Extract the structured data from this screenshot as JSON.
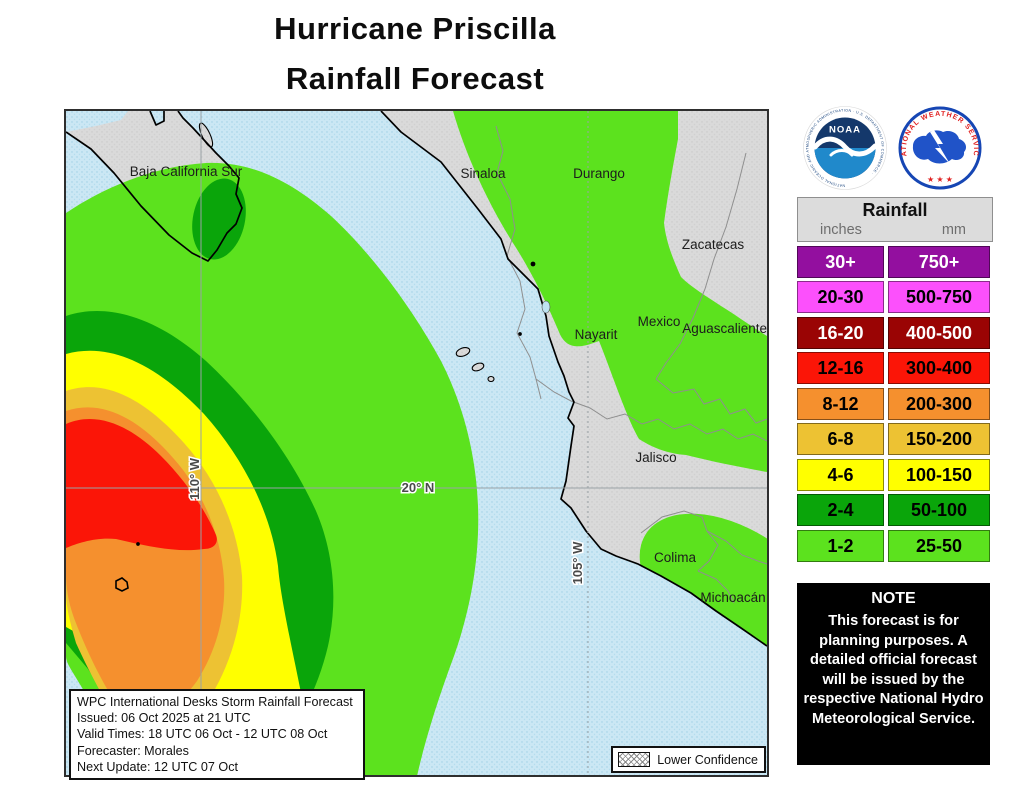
{
  "title": {
    "line1": "Hurricane Priscilla",
    "line2": "Rainfall Forecast"
  },
  "legend": {
    "header": "Rainfall",
    "unit_left": "inches",
    "unit_right": "mm",
    "rows": [
      {
        "inches": "30+",
        "mm": "750+",
        "color": "#930f9f",
        "text_color": "#ffffff"
      },
      {
        "inches": "20-30",
        "mm": "500-750",
        "color": "#fc50fc",
        "text_color": "#000000"
      },
      {
        "inches": "16-20",
        "mm": "400-500",
        "color": "#9a0404",
        "text_color": "#ffffff"
      },
      {
        "inches": "12-16",
        "mm": "300-400",
        "color": "#fb1507",
        "text_color": "#000000"
      },
      {
        "inches": "8-12",
        "mm": "200-300",
        "color": "#f5902e",
        "text_color": "#000000"
      },
      {
        "inches": "6-8",
        "mm": "150-200",
        "color": "#edc233",
        "text_color": "#000000"
      },
      {
        "inches": "4-6",
        "mm": "100-150",
        "color": "#ffff00",
        "text_color": "#000000"
      },
      {
        "inches": "2-4",
        "mm": "50-100",
        "color": "#0aa50a",
        "text_color": "#000000"
      },
      {
        "inches": "1-2",
        "mm": "25-50",
        "color": "#5ce21e",
        "text_color": "#000000"
      }
    ]
  },
  "note": {
    "title": "NOTE",
    "body": "This forecast is for planning purposes. A detailed official forecast will be issued by the respective National Hydro Meteorological Service."
  },
  "info_box": {
    "lines": [
      "WPC International Desks Storm Rainfall Forecast",
      "Issued: 06 Oct 2025 at 21 UTC",
      "Valid Times: 18 UTC 06 Oct - 12 UTC 08 Oct",
      "Forecaster: Morales",
      "Next Update: 12 UTC 07 Oct"
    ]
  },
  "map": {
    "state_labels": [
      "Baja California Sur",
      "Sinaloa",
      "Durango",
      "Zacatecas",
      "Mexico",
      "Aguascalientes",
      "Nayarit",
      "Jalisco",
      "Colima",
      "Michoacán"
    ],
    "graticule_labels": [
      "110° W",
      "105° W",
      "20° N"
    ],
    "lower_confidence_label": "Lower Confidence",
    "colors": {
      "ocean": "#cbe7f4",
      "ocean_dot": "#9fd0e5",
      "land": "#dadada",
      "land_dot": "#c9c9c9",
      "light_green": "#5ce21e",
      "dark_green": "#0aa50a",
      "yellow": "#ffff00",
      "gold": "#edc233",
      "orange": "#f5902e",
      "red": "#fb1507",
      "coast": "#000000",
      "state_border": "#8f8f8f",
      "gridline": "#9aa2a6"
    }
  },
  "logos": {
    "noaa_text": "NOAA",
    "noaa_ring_text": "NATIONAL OCEANIC AND ATMOSPHERIC ADMINISTRATION · U.S. DEPARTMENT OF COMMERCE ·",
    "nws_ring_text": "NATIONAL WEATHER SERVICE",
    "nws_stars": "★ ★ ★"
  }
}
